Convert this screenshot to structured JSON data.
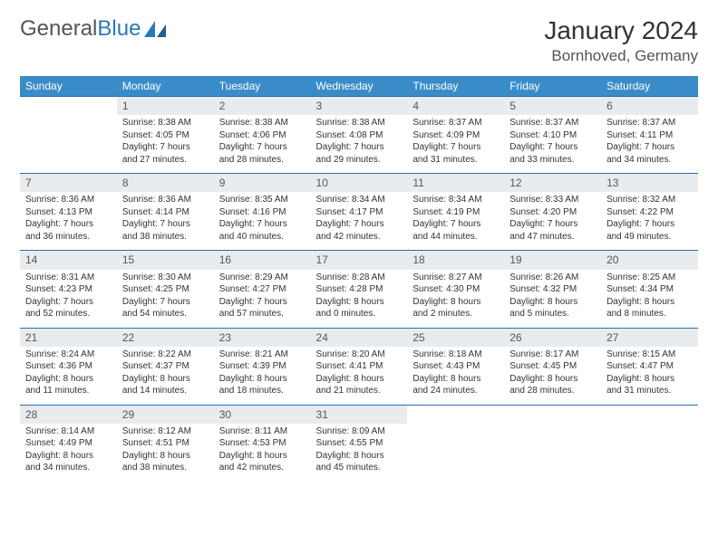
{
  "brand": {
    "part1": "General",
    "part2": "Blue"
  },
  "title": "January 2024",
  "location": "Bornhoved, Germany",
  "colors": {
    "header_bg": "#3a8cc9",
    "header_text": "#ffffff",
    "daynum_bg": "#e9ecef",
    "row_border": "#2a6ea8",
    "logo_blue": "#2a7ab8",
    "logo_gray": "#555555"
  },
  "weekdays": [
    "Sunday",
    "Monday",
    "Tuesday",
    "Wednesday",
    "Thursday",
    "Friday",
    "Saturday"
  ],
  "weeks": [
    [
      null,
      {
        "n": "1",
        "sr": "Sunrise: 8:38 AM",
        "ss": "Sunset: 4:05 PM",
        "d1": "Daylight: 7 hours",
        "d2": "and 27 minutes."
      },
      {
        "n": "2",
        "sr": "Sunrise: 8:38 AM",
        "ss": "Sunset: 4:06 PM",
        "d1": "Daylight: 7 hours",
        "d2": "and 28 minutes."
      },
      {
        "n": "3",
        "sr": "Sunrise: 8:38 AM",
        "ss": "Sunset: 4:08 PM",
        "d1": "Daylight: 7 hours",
        "d2": "and 29 minutes."
      },
      {
        "n": "4",
        "sr": "Sunrise: 8:37 AM",
        "ss": "Sunset: 4:09 PM",
        "d1": "Daylight: 7 hours",
        "d2": "and 31 minutes."
      },
      {
        "n": "5",
        "sr": "Sunrise: 8:37 AM",
        "ss": "Sunset: 4:10 PM",
        "d1": "Daylight: 7 hours",
        "d2": "and 33 minutes."
      },
      {
        "n": "6",
        "sr": "Sunrise: 8:37 AM",
        "ss": "Sunset: 4:11 PM",
        "d1": "Daylight: 7 hours",
        "d2": "and 34 minutes."
      }
    ],
    [
      {
        "n": "7",
        "sr": "Sunrise: 8:36 AM",
        "ss": "Sunset: 4:13 PM",
        "d1": "Daylight: 7 hours",
        "d2": "and 36 minutes."
      },
      {
        "n": "8",
        "sr": "Sunrise: 8:36 AM",
        "ss": "Sunset: 4:14 PM",
        "d1": "Daylight: 7 hours",
        "d2": "and 38 minutes."
      },
      {
        "n": "9",
        "sr": "Sunrise: 8:35 AM",
        "ss": "Sunset: 4:16 PM",
        "d1": "Daylight: 7 hours",
        "d2": "and 40 minutes."
      },
      {
        "n": "10",
        "sr": "Sunrise: 8:34 AM",
        "ss": "Sunset: 4:17 PM",
        "d1": "Daylight: 7 hours",
        "d2": "and 42 minutes."
      },
      {
        "n": "11",
        "sr": "Sunrise: 8:34 AM",
        "ss": "Sunset: 4:19 PM",
        "d1": "Daylight: 7 hours",
        "d2": "and 44 minutes."
      },
      {
        "n": "12",
        "sr": "Sunrise: 8:33 AM",
        "ss": "Sunset: 4:20 PM",
        "d1": "Daylight: 7 hours",
        "d2": "and 47 minutes."
      },
      {
        "n": "13",
        "sr": "Sunrise: 8:32 AM",
        "ss": "Sunset: 4:22 PM",
        "d1": "Daylight: 7 hours",
        "d2": "and 49 minutes."
      }
    ],
    [
      {
        "n": "14",
        "sr": "Sunrise: 8:31 AM",
        "ss": "Sunset: 4:23 PM",
        "d1": "Daylight: 7 hours",
        "d2": "and 52 minutes."
      },
      {
        "n": "15",
        "sr": "Sunrise: 8:30 AM",
        "ss": "Sunset: 4:25 PM",
        "d1": "Daylight: 7 hours",
        "d2": "and 54 minutes."
      },
      {
        "n": "16",
        "sr": "Sunrise: 8:29 AM",
        "ss": "Sunset: 4:27 PM",
        "d1": "Daylight: 7 hours",
        "d2": "and 57 minutes."
      },
      {
        "n": "17",
        "sr": "Sunrise: 8:28 AM",
        "ss": "Sunset: 4:28 PM",
        "d1": "Daylight: 8 hours",
        "d2": "and 0 minutes."
      },
      {
        "n": "18",
        "sr": "Sunrise: 8:27 AM",
        "ss": "Sunset: 4:30 PM",
        "d1": "Daylight: 8 hours",
        "d2": "and 2 minutes."
      },
      {
        "n": "19",
        "sr": "Sunrise: 8:26 AM",
        "ss": "Sunset: 4:32 PM",
        "d1": "Daylight: 8 hours",
        "d2": "and 5 minutes."
      },
      {
        "n": "20",
        "sr": "Sunrise: 8:25 AM",
        "ss": "Sunset: 4:34 PM",
        "d1": "Daylight: 8 hours",
        "d2": "and 8 minutes."
      }
    ],
    [
      {
        "n": "21",
        "sr": "Sunrise: 8:24 AM",
        "ss": "Sunset: 4:36 PM",
        "d1": "Daylight: 8 hours",
        "d2": "and 11 minutes."
      },
      {
        "n": "22",
        "sr": "Sunrise: 8:22 AM",
        "ss": "Sunset: 4:37 PM",
        "d1": "Daylight: 8 hours",
        "d2": "and 14 minutes."
      },
      {
        "n": "23",
        "sr": "Sunrise: 8:21 AM",
        "ss": "Sunset: 4:39 PM",
        "d1": "Daylight: 8 hours",
        "d2": "and 18 minutes."
      },
      {
        "n": "24",
        "sr": "Sunrise: 8:20 AM",
        "ss": "Sunset: 4:41 PM",
        "d1": "Daylight: 8 hours",
        "d2": "and 21 minutes."
      },
      {
        "n": "25",
        "sr": "Sunrise: 8:18 AM",
        "ss": "Sunset: 4:43 PM",
        "d1": "Daylight: 8 hours",
        "d2": "and 24 minutes."
      },
      {
        "n": "26",
        "sr": "Sunrise: 8:17 AM",
        "ss": "Sunset: 4:45 PM",
        "d1": "Daylight: 8 hours",
        "d2": "and 28 minutes."
      },
      {
        "n": "27",
        "sr": "Sunrise: 8:15 AM",
        "ss": "Sunset: 4:47 PM",
        "d1": "Daylight: 8 hours",
        "d2": "and 31 minutes."
      }
    ],
    [
      {
        "n": "28",
        "sr": "Sunrise: 8:14 AM",
        "ss": "Sunset: 4:49 PM",
        "d1": "Daylight: 8 hours",
        "d2": "and 34 minutes."
      },
      {
        "n": "29",
        "sr": "Sunrise: 8:12 AM",
        "ss": "Sunset: 4:51 PM",
        "d1": "Daylight: 8 hours",
        "d2": "and 38 minutes."
      },
      {
        "n": "30",
        "sr": "Sunrise: 8:11 AM",
        "ss": "Sunset: 4:53 PM",
        "d1": "Daylight: 8 hours",
        "d2": "and 42 minutes."
      },
      {
        "n": "31",
        "sr": "Sunrise: 8:09 AM",
        "ss": "Sunset: 4:55 PM",
        "d1": "Daylight: 8 hours",
        "d2": "and 45 minutes."
      },
      null,
      null,
      null
    ]
  ]
}
